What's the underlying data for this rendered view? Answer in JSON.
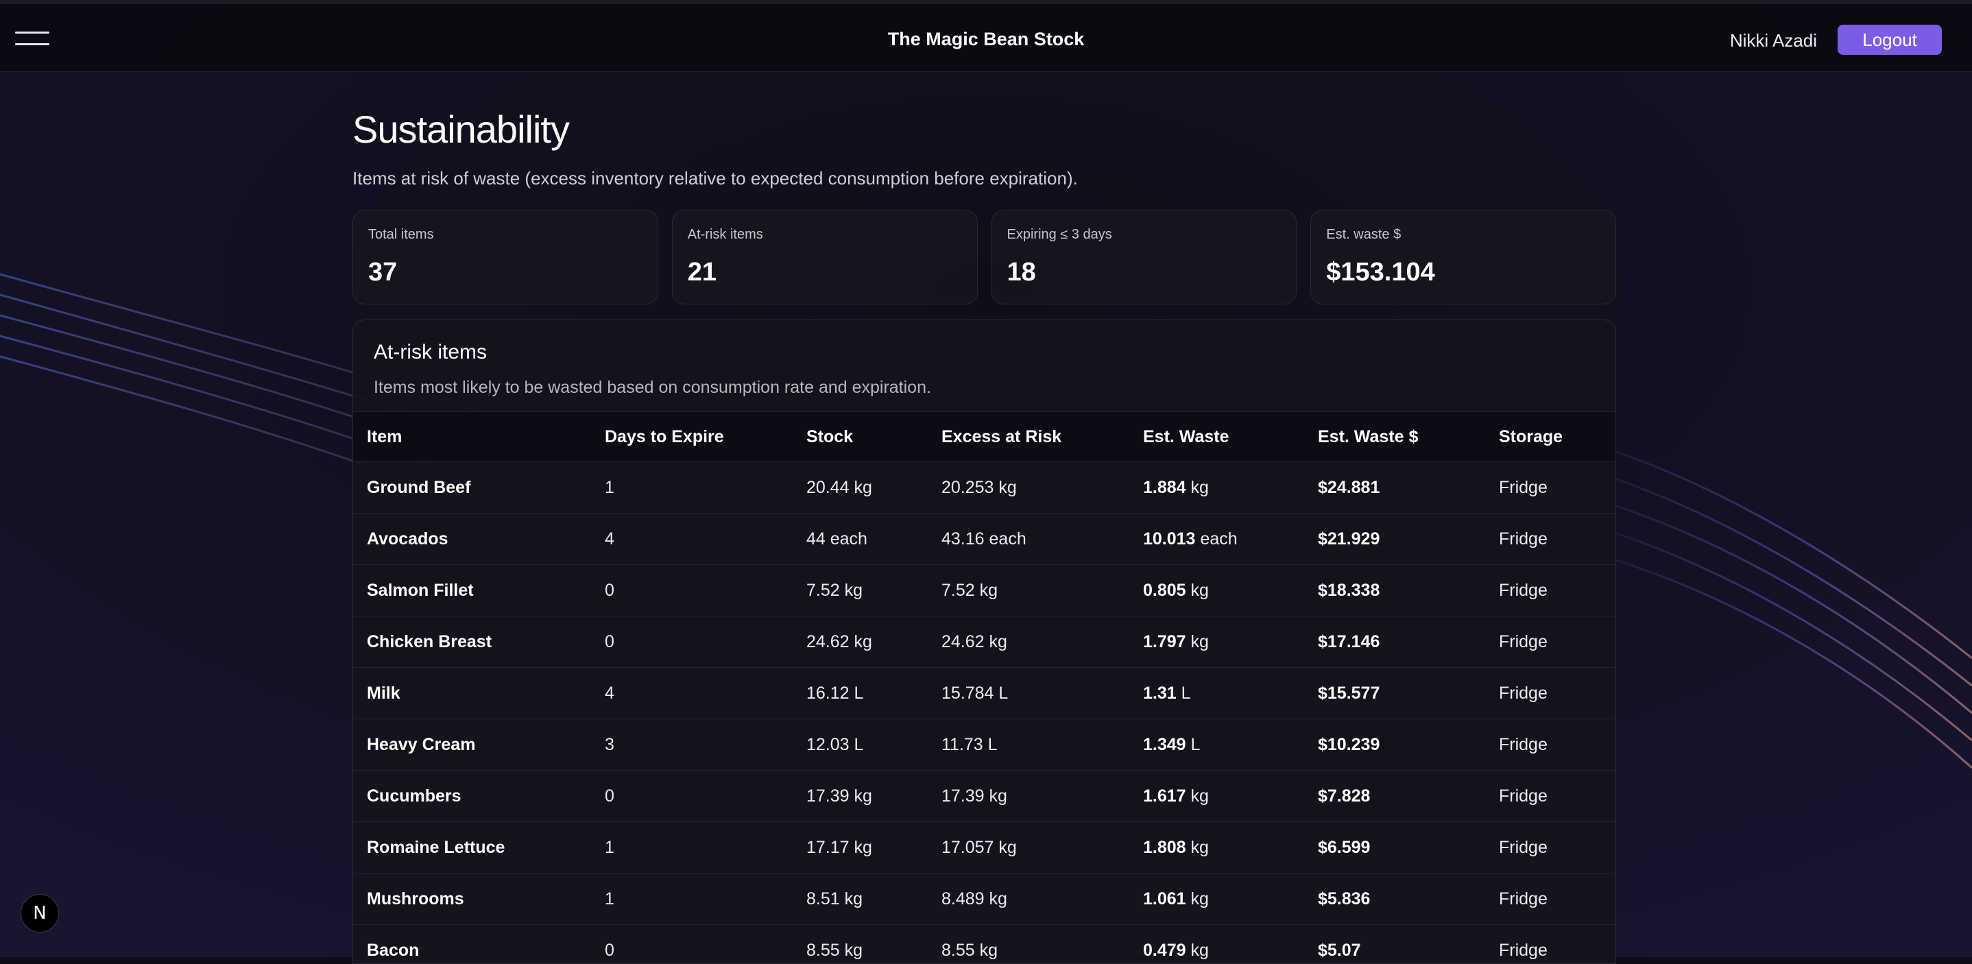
{
  "header": {
    "menu_icon": "hamburger-menu-icon",
    "title": "The Magic Bean Stock",
    "user_name": "Nikki Azadi",
    "logout_label": "Logout"
  },
  "page": {
    "title": "Sustainability",
    "subtitle": "Items at risk of waste (excess inventory relative to expected consumption before expiration)."
  },
  "stats": [
    {
      "label": "Total items",
      "value": "37"
    },
    {
      "label": "At-risk items",
      "value": "21"
    },
    {
      "label": "Expiring ≤ 3 days",
      "value": "18"
    },
    {
      "label": "Est. waste $",
      "value": "$153.104"
    }
  ],
  "at_risk": {
    "title": "At-risk items",
    "subtitle": "Items most likely to be wasted based on consumption rate and expiration.",
    "columns": [
      "Item",
      "Days to Expire",
      "Stock",
      "Excess at Risk",
      "Est. Waste",
      "Est. Waste $",
      "Storage"
    ],
    "rows": [
      {
        "item": "Ground Beef",
        "days": "1",
        "stock": "20.44 kg",
        "excess": "20.253 kg",
        "waste_num": "1.884",
        "waste_unit": "kg",
        "waste_money": "$24.881",
        "storage": "Fridge"
      },
      {
        "item": "Avocados",
        "days": "4",
        "stock": "44 each",
        "excess": "43.16 each",
        "waste_num": "10.013",
        "waste_unit": "each",
        "waste_money": "$21.929",
        "storage": "Fridge"
      },
      {
        "item": "Salmon Fillet",
        "days": "0",
        "stock": "7.52 kg",
        "excess": "7.52 kg",
        "waste_num": "0.805",
        "waste_unit": "kg",
        "waste_money": "$18.338",
        "storage": "Fridge"
      },
      {
        "item": "Chicken Breast",
        "days": "0",
        "stock": "24.62 kg",
        "excess": "24.62 kg",
        "waste_num": "1.797",
        "waste_unit": "kg",
        "waste_money": "$17.146",
        "storage": "Fridge"
      },
      {
        "item": "Milk",
        "days": "4",
        "stock": "16.12 L",
        "excess": "15.784 L",
        "waste_num": "1.31",
        "waste_unit": "L",
        "waste_money": "$15.577",
        "storage": "Fridge"
      },
      {
        "item": "Heavy Cream",
        "days": "3",
        "stock": "12.03 L",
        "excess": "11.73 L",
        "waste_num": "1.349",
        "waste_unit": "L",
        "waste_money": "$10.239",
        "storage": "Fridge"
      },
      {
        "item": "Cucumbers",
        "days": "0",
        "stock": "17.39 kg",
        "excess": "17.39 kg",
        "waste_num": "1.617",
        "waste_unit": "kg",
        "waste_money": "$7.828",
        "storage": "Fridge"
      },
      {
        "item": "Romaine Lettuce",
        "days": "1",
        "stock": "17.17 kg",
        "excess": "17.057 kg",
        "waste_num": "1.808",
        "waste_unit": "kg",
        "waste_money": "$6.599",
        "storage": "Fridge"
      },
      {
        "item": "Mushrooms",
        "days": "1",
        "stock": "8.51 kg",
        "excess": "8.489 kg",
        "waste_num": "1.061",
        "waste_unit": "kg",
        "waste_money": "$5.836",
        "storage": "Fridge"
      },
      {
        "item": "Bacon",
        "days": "0",
        "stock": "8.55 kg",
        "excess": "8.55 kg",
        "waste_num": "0.479",
        "waste_unit": "kg",
        "waste_money": "$5.07",
        "storage": "Fridge"
      }
    ]
  },
  "dev_badge": {
    "label": "N",
    "icon": "nextjs-logo-icon"
  }
}
